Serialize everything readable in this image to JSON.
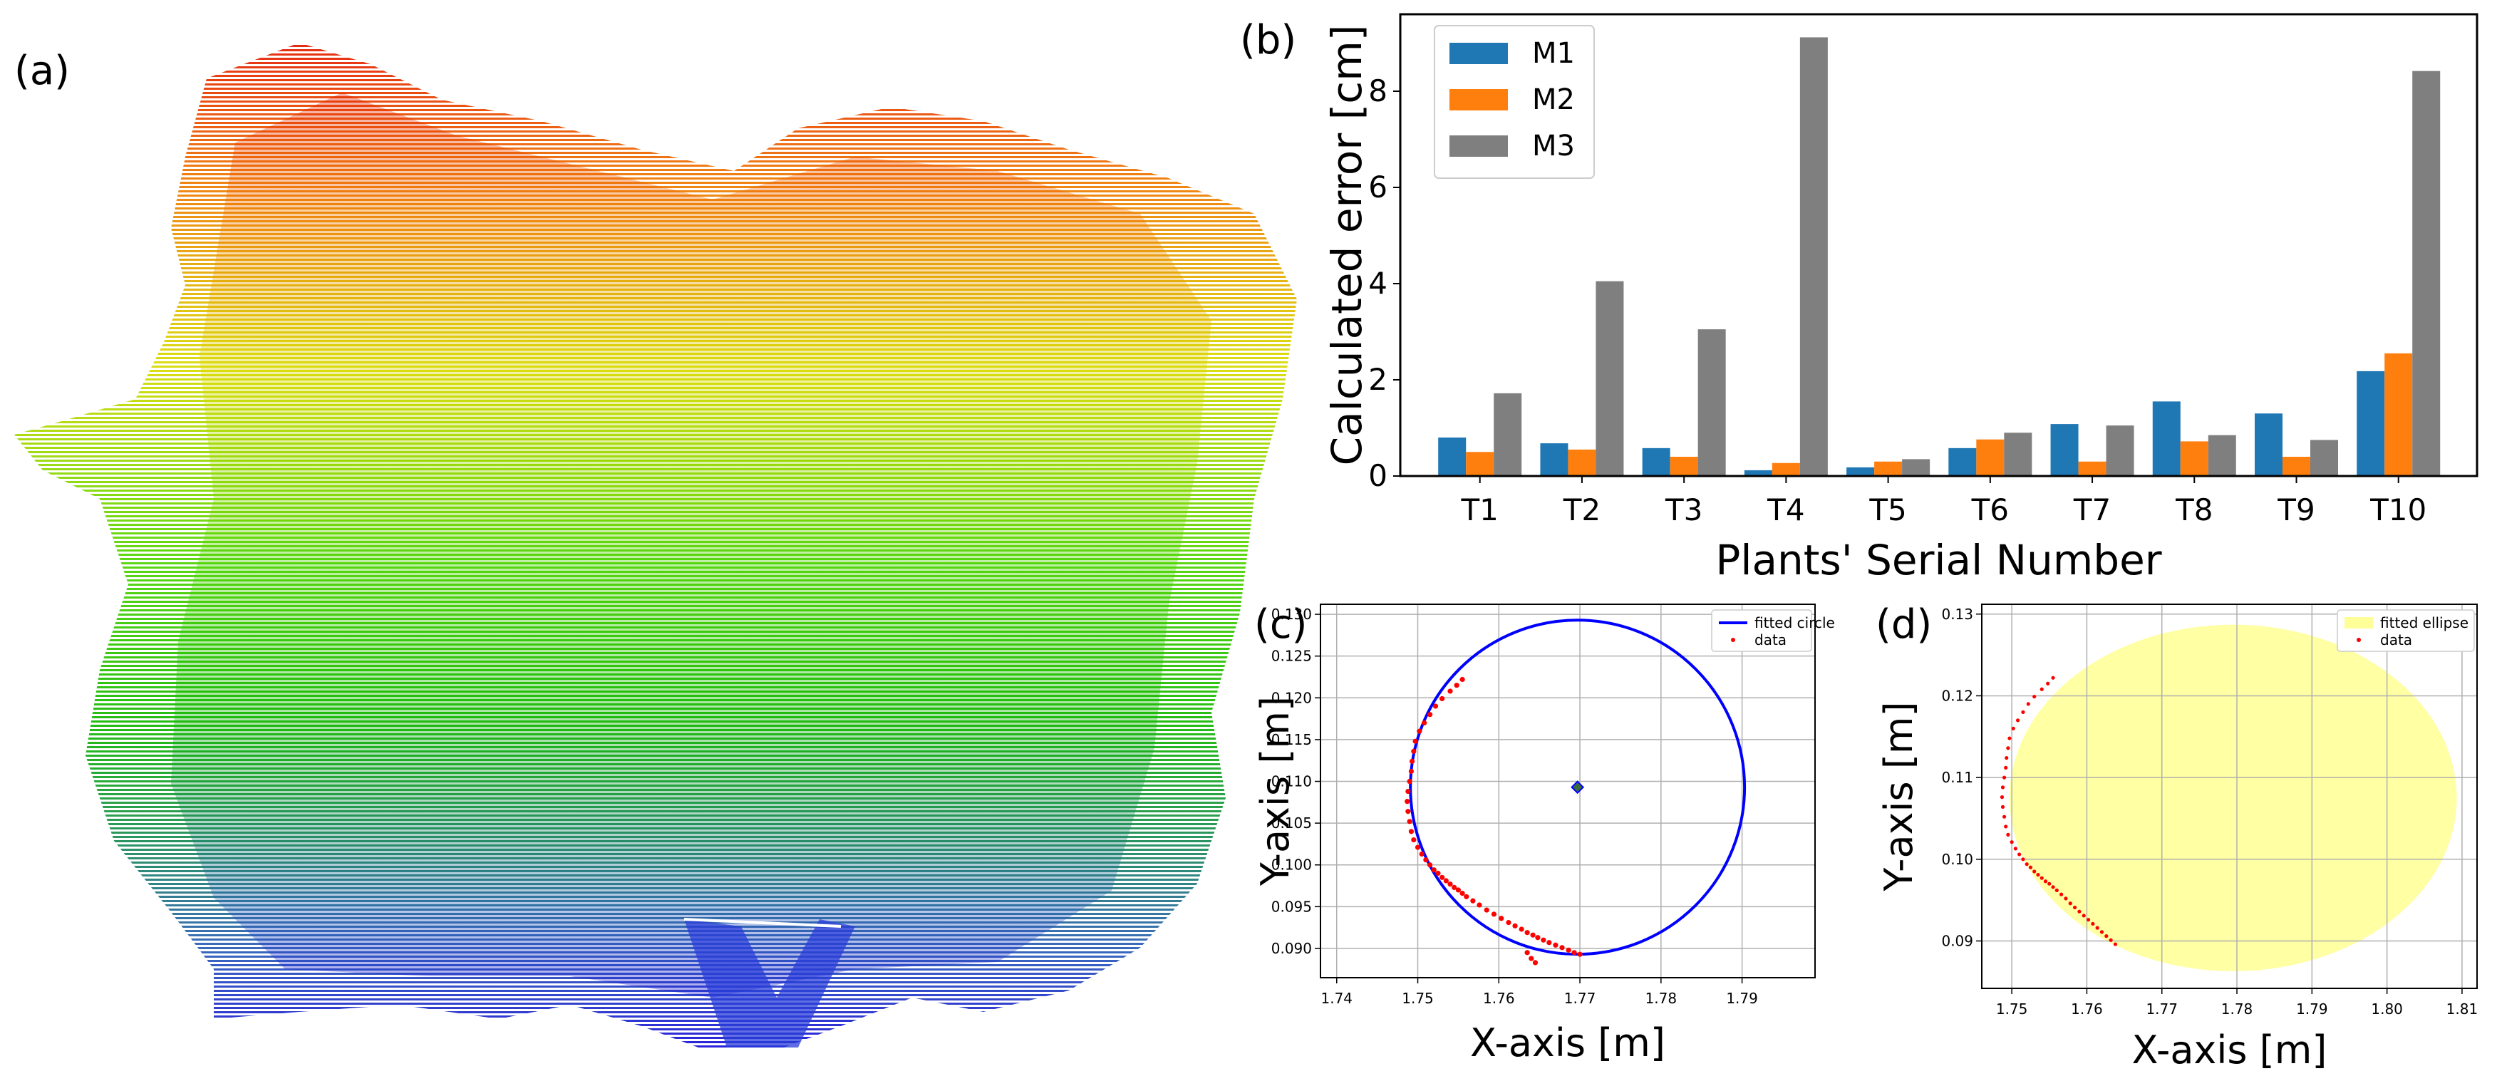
{
  "panels": {
    "a": "(a)",
    "b": "(b)",
    "c": "(c)",
    "d": "(d)"
  },
  "chart_data": [
    {
      "id": "b",
      "type": "bar",
      "categories": [
        "T1",
        "T2",
        "T3",
        "T4",
        "T5",
        "T6",
        "T7",
        "T8",
        "T9",
        "T10"
      ],
      "series": [
        {
          "name": "M1",
          "color": "#1f77b4",
          "values": [
            0.8,
            0.68,
            0.58,
            0.12,
            0.18,
            0.58,
            1.08,
            1.55,
            1.3,
            2.18
          ]
        },
        {
          "name": "M2",
          "color": "#ff7f0e",
          "values": [
            0.5,
            0.55,
            0.4,
            0.27,
            0.3,
            0.76,
            0.3,
            0.72,
            0.4,
            2.55
          ]
        },
        {
          "name": "M3",
          "color": "#7f7f7f",
          "values": [
            1.72,
            4.05,
            3.05,
            9.12,
            0.35,
            0.9,
            1.05,
            0.85,
            0.75,
            8.42
          ]
        }
      ],
      "title": "",
      "xlabel": "Plants' Serial Number",
      "ylabel": "Calculated error [cm]",
      "ylim": [
        0,
        9.6
      ],
      "yticks": [
        0,
        2,
        4,
        6,
        8
      ],
      "legend": "top-left"
    },
    {
      "id": "c",
      "type": "scatter",
      "xlabel": "X-axis [m]",
      "ylabel": "Y-axis [m]",
      "xlim": [
        1.738,
        1.799
      ],
      "ylim": [
        0.0865,
        0.1312
      ],
      "xticks": [
        1.74,
        1.75,
        1.76,
        1.77,
        1.78,
        1.79
      ],
      "yticks": [
        0.09,
        0.095,
        0.1,
        0.105,
        0.11,
        0.115,
        0.12,
        0.125,
        0.13
      ],
      "xtick_labels": [
        "1.74",
        "1.75",
        "1.76",
        "1.77",
        "1.78",
        "1.79"
      ],
      "ytick_labels": [
        "0.090",
        "0.095",
        "0.100",
        "0.105",
        "0.110",
        "0.115",
        "0.120",
        "0.125",
        "0.130"
      ],
      "grid": true,
      "legend_labels": [
        "fitted circle",
        "data"
      ],
      "circle": {
        "cx": 1.7697,
        "cy": 0.1093,
        "r": 0.02,
        "color": "#0000ff"
      },
      "data_color": "#ff0000",
      "data_x": [
        1.7555,
        1.7548,
        1.754,
        1.753,
        1.7522,
        1.7515,
        1.7508,
        1.7502,
        1.7497,
        1.7495,
        1.7493,
        1.7492,
        1.749,
        1.7488,
        1.7487,
        1.7488,
        1.749,
        1.7492,
        1.7495,
        1.75,
        1.7505,
        1.751,
        1.7515,
        1.752,
        1.7525,
        1.753,
        1.7535,
        1.754,
        1.7545,
        1.755,
        1.7555,
        1.756,
        1.7568,
        1.7576,
        1.7585,
        1.7594,
        1.7603,
        1.7612,
        1.762,
        1.7628,
        1.7635,
        1.7642,
        1.7648,
        1.7655,
        1.7662,
        1.767,
        1.7678,
        1.7686,
        1.7693,
        1.77,
        1.7635,
        1.764,
        1.7645
      ],
      "data_y": [
        0.1222,
        0.1215,
        0.1208,
        0.1199,
        0.119,
        0.118,
        0.117,
        0.116,
        0.1148,
        0.1136,
        0.1124,
        0.1112,
        0.11,
        0.1088,
        0.1076,
        0.1064,
        0.1052,
        0.104,
        0.103,
        0.1021,
        0.1013,
        0.1006,
        0.1,
        0.0994,
        0.099,
        0.0985,
        0.0981,
        0.0977,
        0.0973,
        0.097,
        0.0966,
        0.0962,
        0.0957,
        0.0952,
        0.0946,
        0.0941,
        0.0936,
        0.0931,
        0.0927,
        0.0923,
        0.0919,
        0.0916,
        0.0913,
        0.091,
        0.0907,
        0.0904,
        0.0901,
        0.0898,
        0.0895,
        0.0893,
        0.0895,
        0.0888,
        0.0883
      ],
      "center_marker": {
        "x": 1.7697,
        "y": 0.1093
      }
    },
    {
      "id": "d",
      "type": "scatter",
      "xlabel": "X-axis [m]",
      "ylabel": "Y-axis [m]",
      "xlim": [
        1.746,
        1.812
      ],
      "ylim": [
        0.0842,
        0.1312
      ],
      "xticks": [
        1.75,
        1.76,
        1.77,
        1.78,
        1.79,
        1.8,
        1.81
      ],
      "yticks": [
        0.09,
        0.1,
        0.11,
        0.12,
        0.13
      ],
      "xtick_labels": [
        "1.75",
        "1.76",
        "1.77",
        "1.78",
        "1.79",
        "1.80",
        "1.81"
      ],
      "ytick_labels": [
        "0.09",
        "0.10",
        "0.11",
        "0.12",
        "0.13"
      ],
      "grid": true,
      "legend_labels": [
        "fitted ellipse",
        "data"
      ],
      "ellipse": {
        "cx": 1.7795,
        "cy": 0.1075,
        "rx": 0.0298,
        "ry": 0.0212,
        "color": "#ffff99"
      },
      "data_color": "#ff0000",
      "data_x": [
        1.7555,
        1.7548,
        1.754,
        1.753,
        1.7522,
        1.7515,
        1.7508,
        1.7502,
        1.7497,
        1.7495,
        1.7493,
        1.7492,
        1.749,
        1.7488,
        1.7487,
        1.7488,
        1.749,
        1.7492,
        1.7495,
        1.75,
        1.7505,
        1.751,
        1.7515,
        1.752,
        1.7525,
        1.753,
        1.7535,
        1.754,
        1.7545,
        1.755,
        1.7555,
        1.756,
        1.7566,
        1.7572,
        1.7578,
        1.7584,
        1.759,
        1.7596,
        1.7602,
        1.7608,
        1.7614,
        1.762,
        1.7626,
        1.7632,
        1.7638
      ],
      "data_y": [
        0.1222,
        0.1215,
        0.1208,
        0.1199,
        0.119,
        0.118,
        0.117,
        0.116,
        0.1148,
        0.1136,
        0.1124,
        0.1112,
        0.11,
        0.1088,
        0.1076,
        0.1064,
        0.1052,
        0.104,
        0.103,
        0.1021,
        0.1013,
        0.1006,
        0.1,
        0.0994,
        0.099,
        0.0985,
        0.0981,
        0.0977,
        0.0973,
        0.097,
        0.0966,
        0.0962,
        0.0957,
        0.0952,
        0.0946,
        0.0941,
        0.0936,
        0.0931,
        0.0926,
        0.0921,
        0.0916,
        0.0911,
        0.0906,
        0.0901,
        0.0896
      ]
    }
  ]
}
